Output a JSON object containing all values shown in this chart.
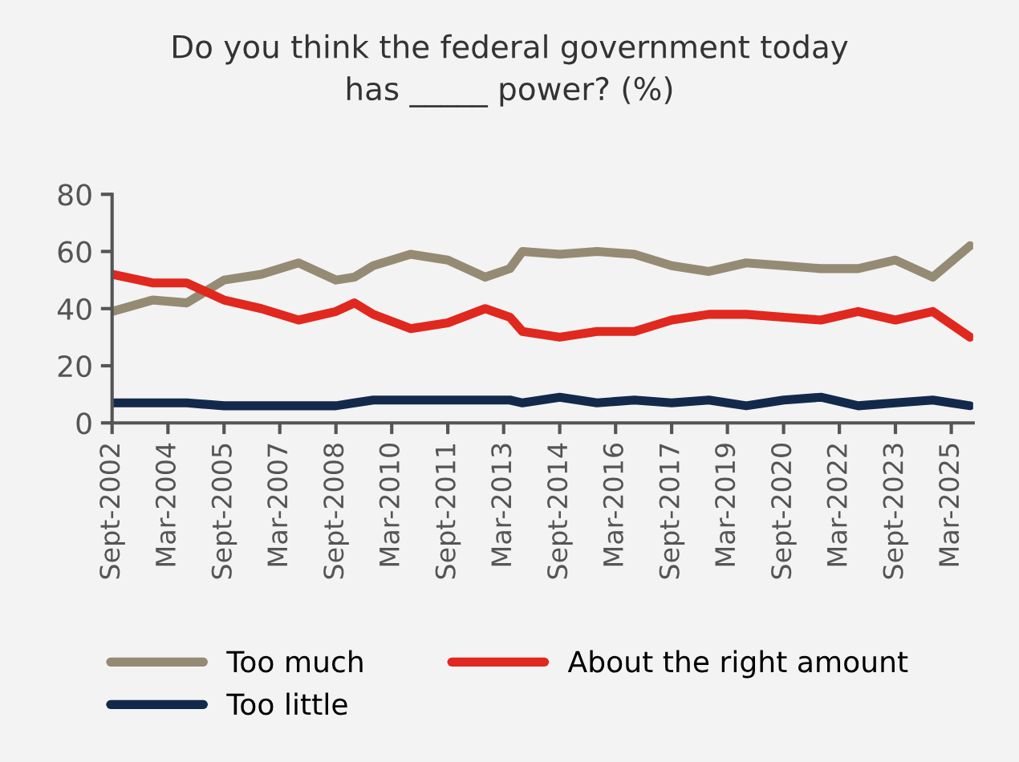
{
  "chart_data": {
    "type": "line",
    "title": "Do you think the federal government today\nhas _____ power? (%)",
    "x": [
      "2002-09",
      "2003-10",
      "2004-09",
      "2005-09",
      "2006-09",
      "2007-09",
      "2008-09",
      "2009-03",
      "2009-09",
      "2010-09",
      "2011-09",
      "2012-09",
      "2013-05",
      "2013-09",
      "2014-09",
      "2015-09",
      "2016-09",
      "2017-09",
      "2018-09",
      "2019-09",
      "2020-09",
      "2021-09",
      "2022-09",
      "2023-09",
      "2024-09",
      "2025-09"
    ],
    "series": [
      {
        "name": "Too much",
        "color": "#958b74",
        "values": [
          39,
          43,
          42,
          50,
          52,
          56,
          50,
          51,
          55,
          59,
          57,
          51,
          54,
          60,
          59,
          60,
          59,
          55,
          53,
          56,
          55,
          54,
          54,
          57,
          51,
          62
        ]
      },
      {
        "name": "About the right amount",
        "color": "#e0281e",
        "values": [
          52,
          49,
          49,
          43,
          40,
          36,
          39,
          42,
          38,
          33,
          35,
          40,
          37,
          32,
          30,
          32,
          32,
          36,
          38,
          38,
          37,
          36,
          39,
          36,
          39,
          30
        ]
      },
      {
        "name": "Too little",
        "color": "#13294b",
        "values": [
          7,
          7,
          7,
          6,
          6,
          6,
          6,
          7,
          8,
          8,
          8,
          8,
          8,
          7,
          9,
          7,
          8,
          7,
          8,
          6,
          8,
          9,
          6,
          7,
          8,
          6
        ]
      }
    ],
    "xlim": [
      "2002-09",
      "2025-10"
    ],
    "xticks": [
      {
        "value": "2002-09",
        "label": "Sept-2002"
      },
      {
        "value": "2004-03",
        "label": "Mar-2004"
      },
      {
        "value": "2005-09",
        "label": "Sept-2005"
      },
      {
        "value": "2007-03",
        "label": "Mar-2007"
      },
      {
        "value": "2008-09",
        "label": "Sept-2008"
      },
      {
        "value": "2010-03",
        "label": "Mar-2010"
      },
      {
        "value": "2011-09",
        "label": "Sept-2011"
      },
      {
        "value": "2013-03",
        "label": "Mar-2013"
      },
      {
        "value": "2014-09",
        "label": "Sept-2014"
      },
      {
        "value": "2016-03",
        "label": "Mar-2016"
      },
      {
        "value": "2017-09",
        "label": "Sept-2017"
      },
      {
        "value": "2019-03",
        "label": "Mar-2019"
      },
      {
        "value": "2020-09",
        "label": "Sept-2020"
      },
      {
        "value": "2022-03",
        "label": "Mar-2022"
      },
      {
        "value": "2023-09",
        "label": "Sept-2023"
      },
      {
        "value": "2025-03",
        "label": "Mar-2025"
      }
    ],
    "ylim": [
      0,
      80
    ],
    "yticks": [
      0,
      20,
      40,
      60,
      80
    ],
    "grid": false,
    "legend": "bottom",
    "marker": "none",
    "line_style": "solid"
  }
}
